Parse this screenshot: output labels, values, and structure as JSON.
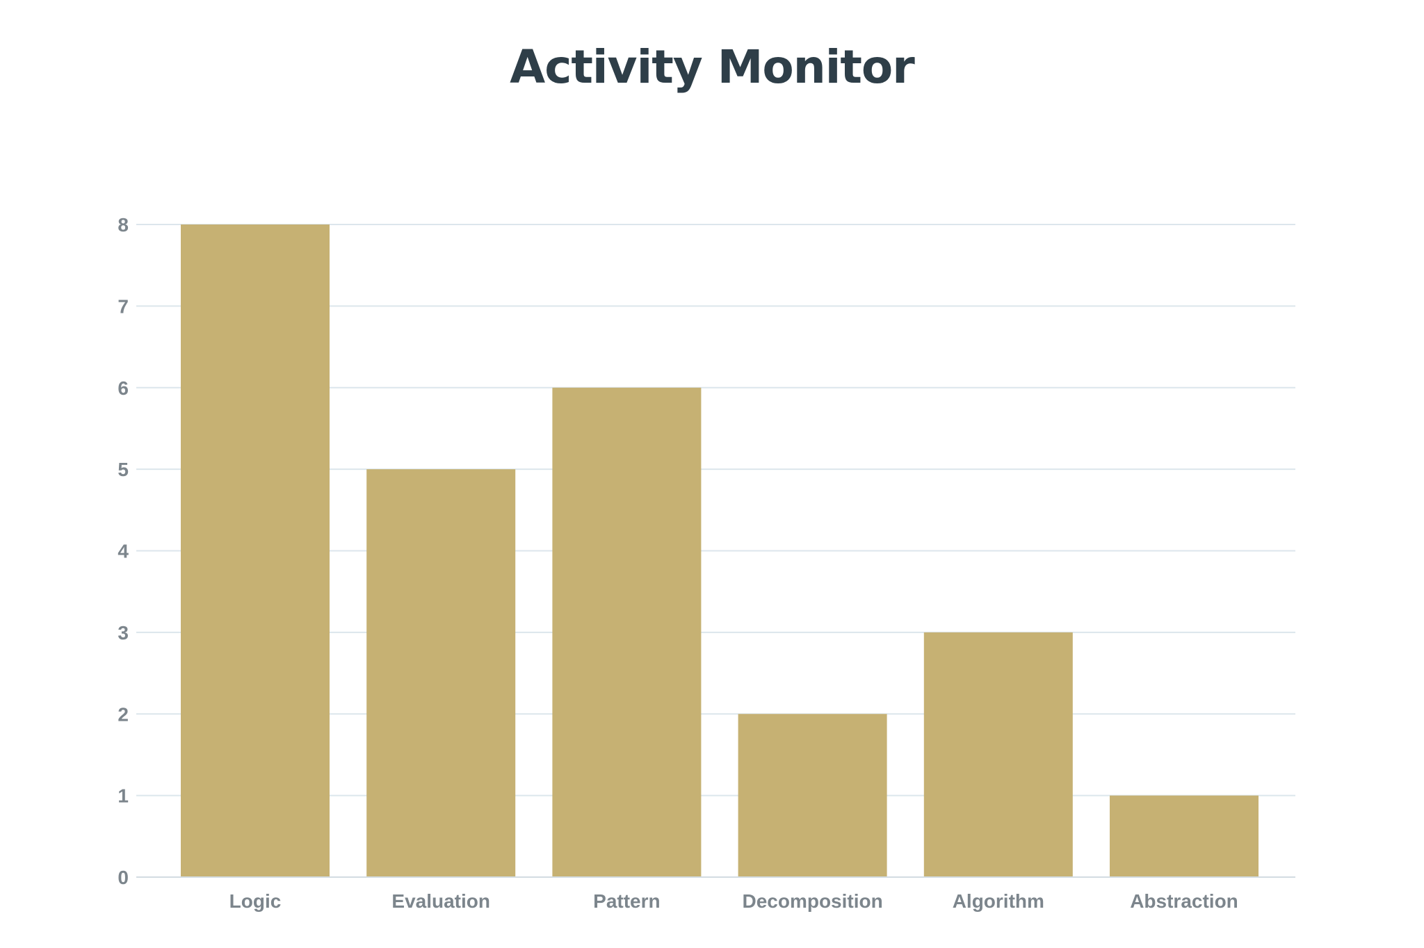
{
  "colors": {
    "bar": "#C6B173",
    "title": "#2E3E48",
    "grid": "#DCE6EC",
    "axis": "#D3DCE2",
    "tick_label": "#7C858C"
  },
  "chart_data": {
    "type": "bar",
    "title": "Activity Monitor",
    "xlabel": "",
    "ylabel": "",
    "categories": [
      "Logic",
      "Evaluation",
      "Pattern",
      "Decomposition",
      "Algorithm",
      "Abstraction"
    ],
    "values": [
      8,
      5,
      6,
      2,
      3,
      1
    ],
    "ylim": [
      0,
      8
    ],
    "yticks": [
      0,
      1,
      2,
      3,
      4,
      5,
      6,
      7,
      8
    ],
    "grid": true,
    "legend": "none"
  }
}
